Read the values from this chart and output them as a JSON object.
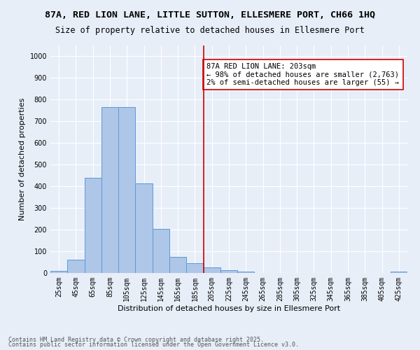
{
  "title": "87A, RED LION LANE, LITTLE SUTTON, ELLESMERE PORT, CH66 1HQ",
  "subtitle": "Size of property relative to detached houses in Ellesmere Port",
  "xlabel": "Distribution of detached houses by size in Ellesmere Port",
  "ylabel": "Number of detached properties",
  "footnote1": "Contains HM Land Registry data © Crown copyright and database right 2025.",
  "footnote2": "Contains public sector information licensed under the Open Government Licence v3.0.",
  "bin_labels": [
    "25sqm",
    "45sqm",
    "65sqm",
    "85sqm",
    "105sqm",
    "125sqm",
    "145sqm",
    "165sqm",
    "185sqm",
    "205sqm",
    "225sqm",
    "245sqm",
    "265sqm",
    "285sqm",
    "305sqm",
    "325sqm",
    "345sqm",
    "365sqm",
    "385sqm",
    "405sqm",
    "425sqm"
  ],
  "bar_values": [
    10,
    60,
    440,
    765,
    765,
    415,
    205,
    75,
    45,
    27,
    13,
    7,
    0,
    0,
    0,
    0,
    0,
    0,
    0,
    0,
    8
  ],
  "bar_color": "#aec6e8",
  "bar_edge_color": "#5b9bd5",
  "vline_index": 9,
  "vline_color": "#cc0000",
  "annotation_text": "87A RED LION LANE: 203sqm\n← 98% of detached houses are smaller (2,763)\n2% of semi-detached houses are larger (55) →",
  "ylim": [
    0,
    1050
  ],
  "yticks": [
    0,
    100,
    200,
    300,
    400,
    500,
    600,
    700,
    800,
    900,
    1000
  ],
  "bg_color": "#e8eef8",
  "grid_color": "#ffffff",
  "title_fontsize": 9.5,
  "subtitle_fontsize": 8.5,
  "axis_label_fontsize": 8,
  "tick_fontsize": 7,
  "annotation_fontsize": 7.5
}
